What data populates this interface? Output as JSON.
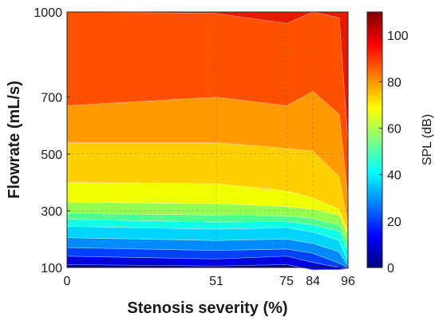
{
  "chart_data": {
    "type": "contour",
    "title": "",
    "xlabel": "Stenosis severity (%)",
    "ylabel": "Flowrate (mL/s)",
    "xlim": [
      0,
      96
    ],
    "ylim": [
      100,
      1000
    ],
    "x_ticks": [
      0,
      51,
      75,
      84,
      96
    ],
    "y_ticks": [
      100,
      300,
      500,
      700,
      1000
    ],
    "x": [
      0,
      51,
      75,
      84,
      93,
      96
    ],
    "grid": true,
    "colorbar": {
      "label": "SPL (dB)",
      "range": [
        0,
        110
      ],
      "ticks": [
        0,
        20,
        40,
        60,
        80,
        100
      ]
    },
    "level_colors": [
      "#00008f",
      "#0000e0",
      "#0040ff",
      "#008cff",
      "#00d4ff",
      "#10ffe8",
      "#50ff90",
      "#94ff50",
      "#f0ff00",
      "#ffd000",
      "#ff9a00",
      "#ff5000",
      "#e51a00"
    ],
    "contour_boundaries": [
      [
        110,
        105,
        110,
        92,
        93,
        96
      ],
      [
        140,
        130,
        140,
        118,
        100,
        96
      ],
      [
        170,
        160,
        165,
        150,
        115,
        100
      ],
      [
        205,
        195,
        200,
        185,
        155,
        105
      ],
      [
        245,
        235,
        240,
        225,
        195,
        120
      ],
      [
        270,
        260,
        262,
        250,
        228,
        160
      ],
      [
        290,
        285,
        282,
        272,
        250,
        190
      ],
      [
        330,
        325,
        315,
        305,
        285,
        215
      ],
      [
        400,
        395,
        370,
        345,
        305,
        225
      ],
      [
        540,
        540,
        520,
        510,
        420,
        250
      ],
      [
        670,
        700,
        670,
        720,
        640,
        345
      ],
      [
        1000,
        995,
        960,
        1000,
        980,
        540
      ]
    ]
  }
}
